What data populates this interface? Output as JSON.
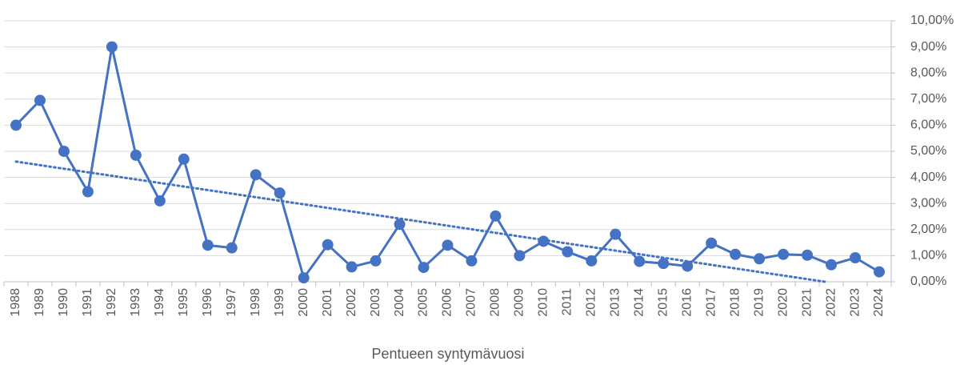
{
  "chart_data": {
    "type": "line",
    "x_label": "Pentueen syntymävuosi",
    "categories": [
      "1988",
      "1989",
      "1990",
      "1991",
      "1992",
      "1993",
      "1994",
      "1995",
      "1996",
      "1997",
      "1998",
      "1999",
      "2000",
      "2001",
      "2002",
      "2003",
      "2004",
      "2005",
      "2006",
      "2007",
      "2008",
      "2009",
      "2010",
      "2011",
      "2012",
      "2013",
      "2014",
      "2015",
      "2016",
      "2017",
      "2018",
      "2019",
      "2020",
      "2021",
      "2022",
      "2023",
      "2024"
    ],
    "values": [
      6.0,
      6.95,
      5.0,
      3.45,
      9.0,
      4.85,
      3.1,
      4.7,
      1.4,
      1.3,
      4.1,
      3.4,
      0.15,
      1.42,
      0.57,
      0.8,
      2.2,
      0.55,
      1.4,
      0.8,
      2.52,
      1.0,
      1.55,
      1.15,
      0.8,
      1.82,
      0.78,
      0.7,
      0.6,
      1.48,
      1.05,
      0.88,
      1.05,
      1.02,
      0.65,
      0.92,
      0.38
    ],
    "color": "#4472c4",
    "trendline": "linear",
    "ylim": [
      0,
      10
    ],
    "yticks": [
      {
        "value": 0,
        "label": "0,00%"
      },
      {
        "value": 1,
        "label": "1,00%"
      },
      {
        "value": 2,
        "label": "2,00%"
      },
      {
        "value": 3,
        "label": "3,00%"
      },
      {
        "value": 4,
        "label": "4,00%"
      },
      {
        "value": 5,
        "label": "5,00%"
      },
      {
        "value": 6,
        "label": "6,00%"
      },
      {
        "value": 7,
        "label": "7,00%"
      },
      {
        "value": 8,
        "label": "8,00%"
      },
      {
        "value": 9,
        "label": "9,00%"
      },
      {
        "value": 10,
        "label": "10,00%"
      }
    ],
    "grid": true,
    "y_axis_side": "right"
  }
}
